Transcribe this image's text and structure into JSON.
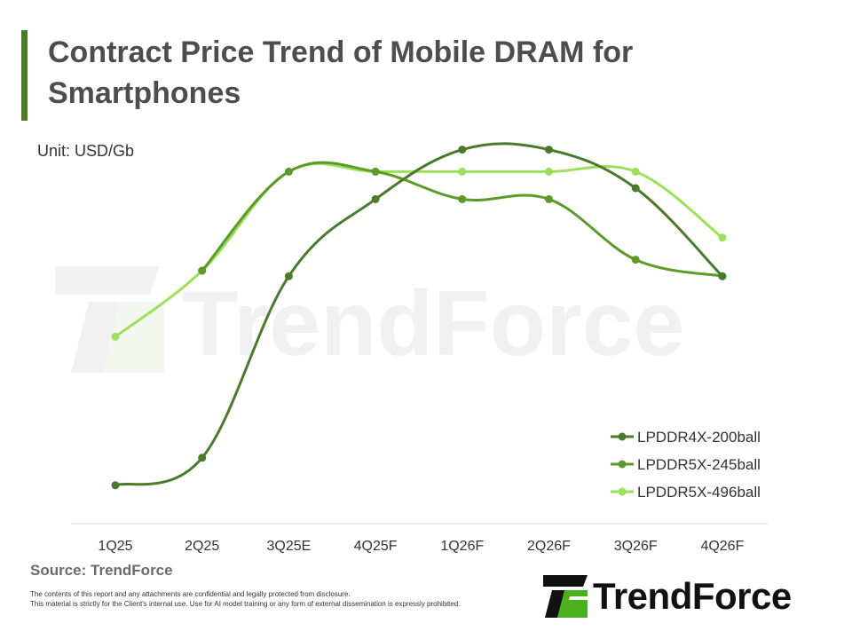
{
  "header": {
    "title": "Contract Price Trend of Mobile DRAM for Smartphones",
    "unit": "Unit: USD/Gb"
  },
  "footer": {
    "source": "Source: TrendForce",
    "disclaimer_line1": "The contents of this report and any attachments are confidential and legally protected from disclosure.",
    "disclaimer_line2": "This material is strictly for the Client's internal use. Use for AI model training or any form of external dissemination is expressly prohibited.",
    "logo_text": "TrendForce",
    "watermark_text": "TrendForce"
  },
  "colors": {
    "accent": "#4a7a2a",
    "LPDDR4X-200ball": "#4a7a2a",
    "LPDDR5X-245ball": "#5e9a2a",
    "LPDDR5X-496ball": "#9ae05a"
  },
  "chart_data": {
    "type": "line",
    "categories": [
      "1Q25",
      "2Q25",
      "3Q25E",
      "4Q25F",
      "1Q26F",
      "2Q26F",
      "3Q26F",
      "4Q26F"
    ],
    "ylim": [
      0,
      10
    ],
    "grid": false,
    "legend_position": "bottom-right",
    "series": [
      {
        "name": "LPDDR4X-200ball",
        "values": [
          0.6,
          1.1,
          4.4,
          5.8,
          6.7,
          6.7,
          6.0,
          4.4
        ]
      },
      {
        "name": "LPDDR5X-245ball",
        "values": [
          null,
          4.5,
          6.3,
          6.3,
          5.8,
          5.8,
          4.7,
          4.4
        ]
      },
      {
        "name": "LPDDR5X-496ball",
        "values": [
          3.3,
          4.5,
          6.3,
          6.3,
          6.3,
          6.3,
          6.3,
          5.1
        ]
      }
    ]
  }
}
